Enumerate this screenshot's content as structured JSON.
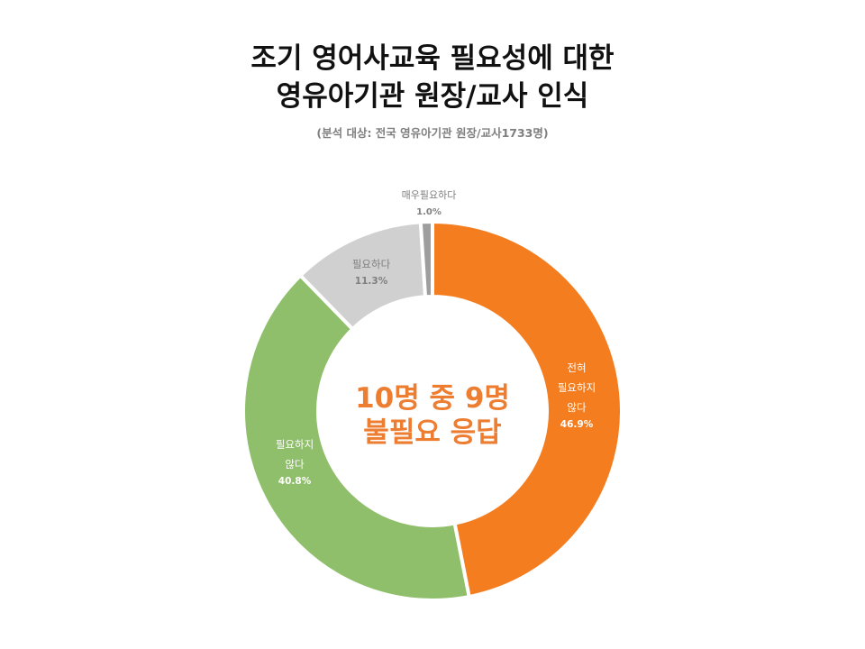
{
  "chart_data": {
    "type": "pie",
    "title_lines": [
      "조기 영어사교육 필요성에 대한",
      "영유아기관 원장/교사 인식"
    ],
    "subtitle": "(분석 대상: 전국 영유아기관 원장/교사1733명)",
    "center_text": [
      "10명 중 9명",
      "불필요 응답"
    ],
    "center_color": "#ED7D31",
    "donut": true,
    "slices": [
      {
        "label_lines": [
          "전혀",
          "필요하지",
          "않다"
        ],
        "value": 46.9,
        "value_label": "46.9%",
        "color": "#F47D20",
        "label_color": "#FFFFFF"
      },
      {
        "label_lines": [
          "필요하지",
          "않다"
        ],
        "value": 40.8,
        "value_label": "40.8%",
        "color": "#8FBF6A",
        "label_color": "#FFFFFF"
      },
      {
        "label_lines": [
          "필요하다"
        ],
        "value": 11.3,
        "value_label": "11.3%",
        "color": "#D0D0D0",
        "label_color": "#7F7F7F"
      },
      {
        "label_lines": [
          "매우필요하다"
        ],
        "value": 1.0,
        "value_label": "1.0%",
        "color": "#9E9E9E",
        "label_color": "#7F7F7F"
      }
    ]
  }
}
